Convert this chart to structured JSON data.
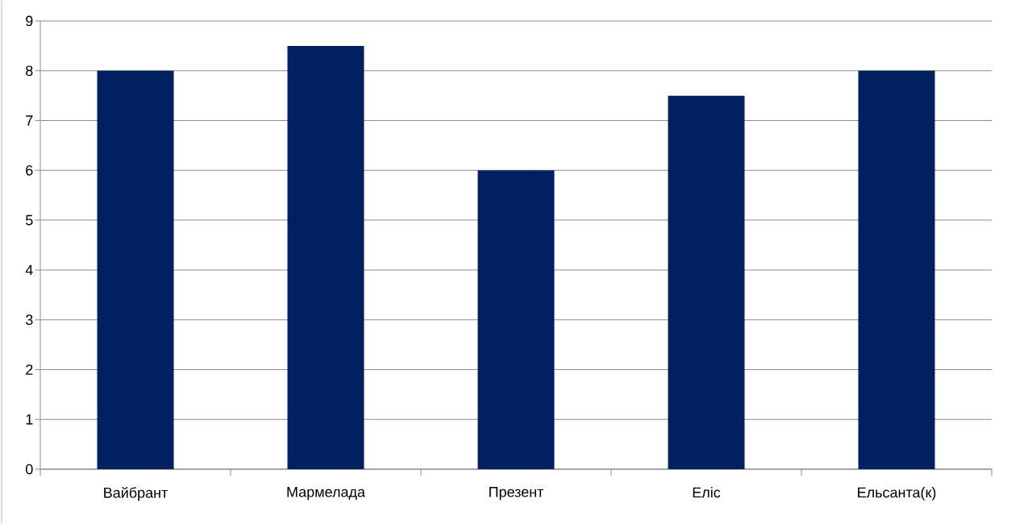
{
  "chart_data": {
    "type": "bar",
    "categories": [
      "Вайбрант",
      "Мармелада",
      "Презент",
      "Еліс",
      "Ельсанта(к)"
    ],
    "values": [
      8,
      8.5,
      6,
      7.5,
      8
    ],
    "color": "#002060",
    "ylim": [
      0,
      9
    ],
    "yticks": [
      0,
      1,
      2,
      3,
      4,
      5,
      6,
      7,
      8,
      9
    ],
    "grid": "y"
  }
}
